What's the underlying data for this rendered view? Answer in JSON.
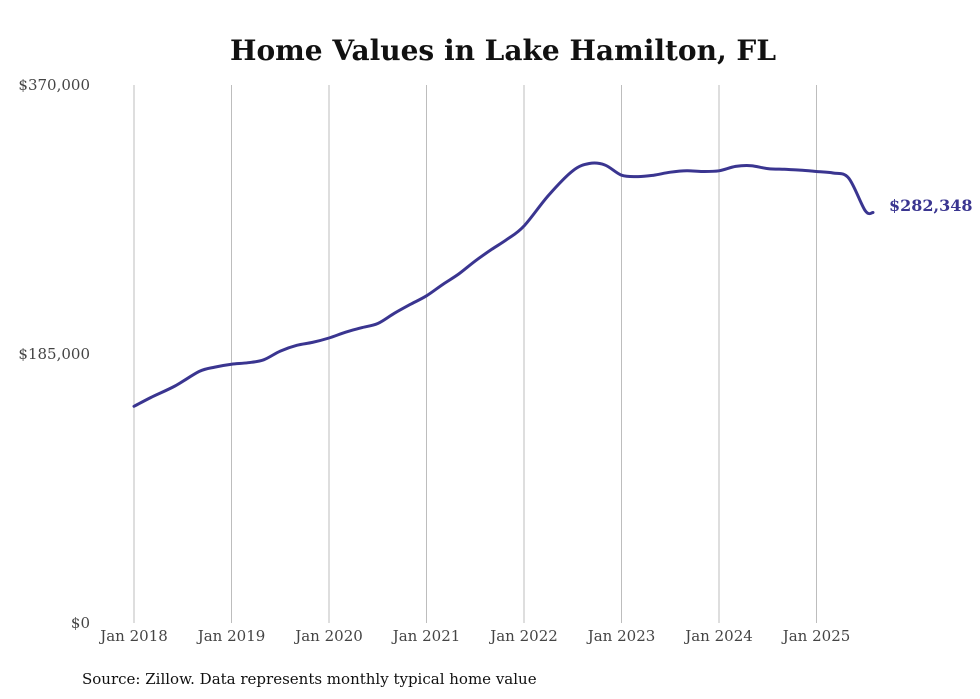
{
  "chart_data": {
    "type": "line",
    "title": "Home Values in Lake Hamilton, FL",
    "xlabel": "",
    "ylabel": "",
    "ylim": [
      0,
      370000
    ],
    "y_ticks": [
      {
        "value": 0,
        "label": "$0"
      },
      {
        "value": 185000,
        "label": "$185,000"
      },
      {
        "value": 370000,
        "label": "$370,000"
      }
    ],
    "x_ticks": [
      {
        "value": 2018.0,
        "label": "Jan 2018"
      },
      {
        "value": 2019.0,
        "label": "Jan 2019"
      },
      {
        "value": 2020.0,
        "label": "Jan 2020"
      },
      {
        "value": 2021.0,
        "label": "Jan 2021"
      },
      {
        "value": 2022.0,
        "label": "Jan 2022"
      },
      {
        "value": 2023.0,
        "label": "Jan 2023"
      },
      {
        "value": 2024.0,
        "label": "Jan 2024"
      },
      {
        "value": 2025.0,
        "label": "Jan 2025"
      }
    ],
    "grid": {
      "vertical": true,
      "horizontal": false
    },
    "end_label": "$282,348",
    "series": [
      {
        "color": "#3a3590",
        "x": [
          2018.0,
          2018.17,
          2018.42,
          2018.67,
          2018.83,
          2019.0,
          2019.17,
          2019.33,
          2019.5,
          2019.67,
          2019.83,
          2020.0,
          2020.17,
          2020.33,
          2020.5,
          2020.67,
          2020.83,
          2021.0,
          2021.17,
          2021.33,
          2021.5,
          2021.67,
          2021.83,
          2022.0,
          2022.25,
          2022.5,
          2022.67,
          2022.83,
          2023.0,
          2023.17,
          2023.33,
          2023.5,
          2023.67,
          2023.83,
          2024.0,
          2024.17,
          2024.33,
          2024.5,
          2024.67,
          2024.83,
          2025.0,
          2025.17,
          2025.33,
          2025.5,
          2025.58
        ],
        "y": [
          149000,
          155000,
          163000,
          173000,
          176000,
          178000,
          179000,
          181000,
          187000,
          191000,
          193000,
          196000,
          200000,
          203000,
          206000,
          213000,
          219000,
          225000,
          233000,
          240000,
          249000,
          257000,
          264000,
          273000,
          294000,
          311000,
          316000,
          315000,
          308000,
          307000,
          308000,
          310000,
          311000,
          310500,
          311000,
          314000,
          314500,
          312500,
          312000,
          311500,
          310500,
          309500,
          306000,
          283500,
          282348
        ]
      }
    ]
  },
  "source_note": "Source: Zillow. Data represents monthly typical home value"
}
